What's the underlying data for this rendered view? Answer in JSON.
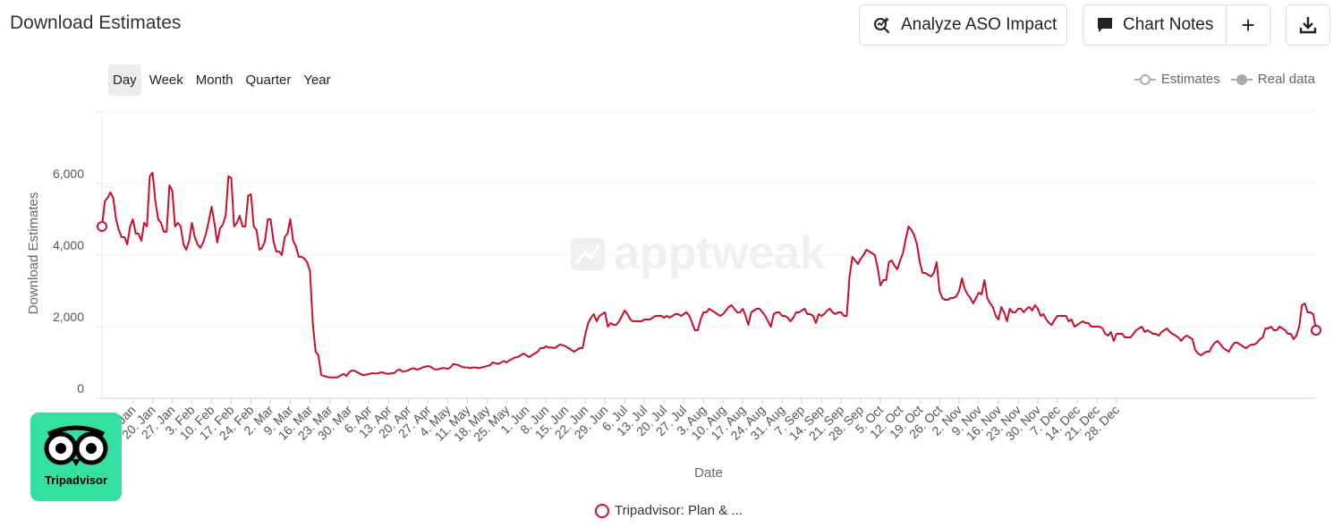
{
  "header": {
    "title": "Download Estimates",
    "analyze_label": "Analyze ASO Impact",
    "chart_notes_label": "Chart Notes",
    "add_label": "+"
  },
  "periods": [
    "Day",
    "Week",
    "Month",
    "Quarter",
    "Year"
  ],
  "active_period": "Day",
  "legend_top": {
    "estimates": "Estimates",
    "real_data": "Real data"
  },
  "watermark": "apptweak",
  "logo": {
    "text": "Tripadvisor"
  },
  "series_legend": {
    "label": "Tripadvisor: Plan & ..."
  },
  "colors": {
    "series": "#c8102e",
    "logo_bg": "#34e0a1"
  },
  "chart_data": {
    "type": "line",
    "xlabel": "Date",
    "ylabel": "Download Estimates",
    "ylim": [
      0,
      8000
    ],
    "yticks": [
      0,
      2000,
      4000,
      6000
    ],
    "ytick_labels": [
      "0",
      "2,000",
      "4,000",
      "6,000"
    ],
    "xtick_labels": [
      "13. Jan",
      "20. Jan",
      "27. Jan",
      "3. Feb",
      "10. Feb",
      "17. Feb",
      "24. Feb",
      "2. Mar",
      "9. Mar",
      "16. Mar",
      "23. Mar",
      "30. Mar",
      "6. Apr",
      "13. Apr",
      "20. Apr",
      "27. Apr",
      "4. May",
      "11. May",
      "18. May",
      "25. May",
      "1. Jun",
      "8. Jun",
      "15. Jun",
      "22. Jun",
      "29. Jun",
      "6. Jul",
      "13. Jul",
      "20. Jul",
      "27. Jul",
      "3. Aug",
      "10. Aug",
      "17. Aug",
      "24. Aug",
      "31. Aug",
      "7. Sep",
      "14. Sep",
      "21. Sep",
      "28. Sep",
      "5. Oct",
      "12. Oct",
      "19. Oct",
      "26. Oct",
      "2. Nov",
      "9. Nov",
      "16. Nov",
      "23. Nov",
      "30. Nov",
      "7. Dec",
      "14. Dec",
      "21. Dec",
      "28. Dec"
    ],
    "first_tick_index": 11,
    "grid": true,
    "legend": "bottom",
    "series": [
      {
        "name": "Tripadvisor: Plan & ...",
        "values": [
          4800,
          5500,
          5600,
          5750,
          5600,
          5000,
          4700,
          4500,
          4500,
          4300,
          4800,
          5000,
          4600,
          4600,
          4400,
          4900,
          4800,
          6200,
          6300,
          5500,
          5000,
          4900,
          4650,
          4650,
          5950,
          5800,
          4800,
          4900,
          4800,
          4300,
          4150,
          4400,
          4900,
          4500,
          4300,
          4200,
          4350,
          4600,
          4950,
          5350,
          4900,
          4350,
          4750,
          4850,
          5100,
          6200,
          6150,
          4800,
          4900,
          5100,
          4800,
          4800,
          5650,
          5700,
          4800,
          4700,
          4150,
          4200,
          4400,
          5000,
          5000,
          4400,
          4100,
          4100,
          4000,
          4500,
          4600,
          5000,
          4400,
          4250,
          3950,
          3950,
          3900,
          3800,
          3550,
          2100,
          1300,
          1200,
          650,
          620,
          600,
          580,
          580,
          580,
          590,
          640,
          680,
          620,
          730,
          780,
          760,
          720,
          680,
          640,
          660,
          680,
          700,
          690,
          690,
          720,
          720,
          690,
          680,
          700,
          700,
          780,
          800,
          740,
          760,
          780,
          820,
          840,
          800,
          820,
          860,
          880,
          900,
          880,
          820,
          800,
          820,
          840,
          840,
          820,
          860,
          960,
          940,
          920,
          880,
          860,
          860,
          840,
          860,
          860,
          840,
          860,
          880,
          900,
          920,
          1000,
          980,
          960,
          1000,
          1040,
          1000,
          1060,
          1100,
          1140,
          1150,
          1200,
          1250,
          1200,
          1150,
          1200,
          1250,
          1300,
          1400,
          1400,
          1450,
          1420,
          1420,
          1400,
          1450,
          1500,
          1480,
          1450,
          1400,
          1350,
          1300,
          1350,
          1400,
          1400,
          1800,
          2100,
          2250,
          2350,
          2150,
          2300,
          2350,
          2400,
          2000,
          2100,
          2050,
          2050,
          2150,
          2300,
          2450,
          2350,
          2200,
          2150,
          2150,
          2150,
          2150,
          2200,
          2200,
          2200,
          2250,
          2300,
          2300,
          2300,
          2250,
          2300,
          2250,
          2300,
          2350,
          2350,
          2300,
          2350,
          2400,
          2300,
          2100,
          1900,
          1900,
          2200,
          2400,
          2400,
          2500,
          2450,
          2400,
          2350,
          2300,
          2350,
          2450,
          2550,
          2600,
          2500,
          2400,
          2400,
          2500,
          2300,
          2050,
          2400,
          2450,
          2500,
          2500,
          2400,
          2300,
          2150,
          2000,
          2350,
          2400,
          2400,
          2300,
          2300,
          2250,
          2150,
          2250,
          2400,
          2400,
          2450,
          2500,
          2350,
          2350,
          2300,
          2100,
          2350,
          2300,
          2350,
          2450,
          2500,
          2400,
          2350,
          2400,
          2400,
          2300,
          2300,
          3400,
          3950,
          3850,
          3750,
          3900,
          4000,
          4150,
          4100,
          4050,
          4000,
          3650,
          3150,
          3300,
          3300,
          3800,
          3850,
          3700,
          3600,
          3850,
          4050,
          4450,
          4800,
          4700,
          4550,
          4300,
          3800,
          3500,
          3500,
          3450,
          3400,
          3500,
          3800,
          3000,
          2800,
          2750,
          2750,
          2800,
          2800,
          2850,
          3000,
          3350,
          3050,
          2900,
          2800,
          2650,
          2800,
          2950,
          2900,
          3300,
          2800,
          2650,
          2550,
          2300,
          2200,
          2550,
          2400,
          2150,
          2500,
          2400,
          2400,
          2500,
          2500,
          2400,
          2500,
          2550,
          2450,
          2600,
          2500,
          2300,
          2350,
          2200,
          2100,
          2050,
          2200,
          2300,
          2300,
          2300,
          2300,
          2150,
          2200,
          2000,
          2050,
          2100,
          2150,
          2100,
          2100,
          2000,
          2000,
          2000,
          2000,
          1950,
          1800,
          1750,
          1850,
          1600,
          1800,
          1800,
          1800,
          1700,
          1700,
          1700,
          1800,
          1900,
          1950,
          2000,
          1850,
          1900,
          1850,
          1800,
          1800,
          1750,
          1850,
          1900,
          1950,
          1850,
          1800,
          1750,
          1700,
          1600,
          1700,
          1750,
          1700,
          1650,
          1350,
          1250,
          1200,
          1250,
          1300,
          1300,
          1450,
          1550,
          1600,
          1500,
          1400,
          1350,
          1300,
          1450,
          1550,
          1550,
          1500,
          1450,
          1400,
          1450,
          1500,
          1500,
          1550,
          1650,
          1700,
          1950,
          1950,
          2000,
          1900,
          1900,
          2000,
          1950,
          1900,
          1800,
          1800,
          1650,
          1750,
          2000,
          2600,
          2650,
          2400,
          2400,
          2350,
          1900
        ]
      }
    ]
  }
}
